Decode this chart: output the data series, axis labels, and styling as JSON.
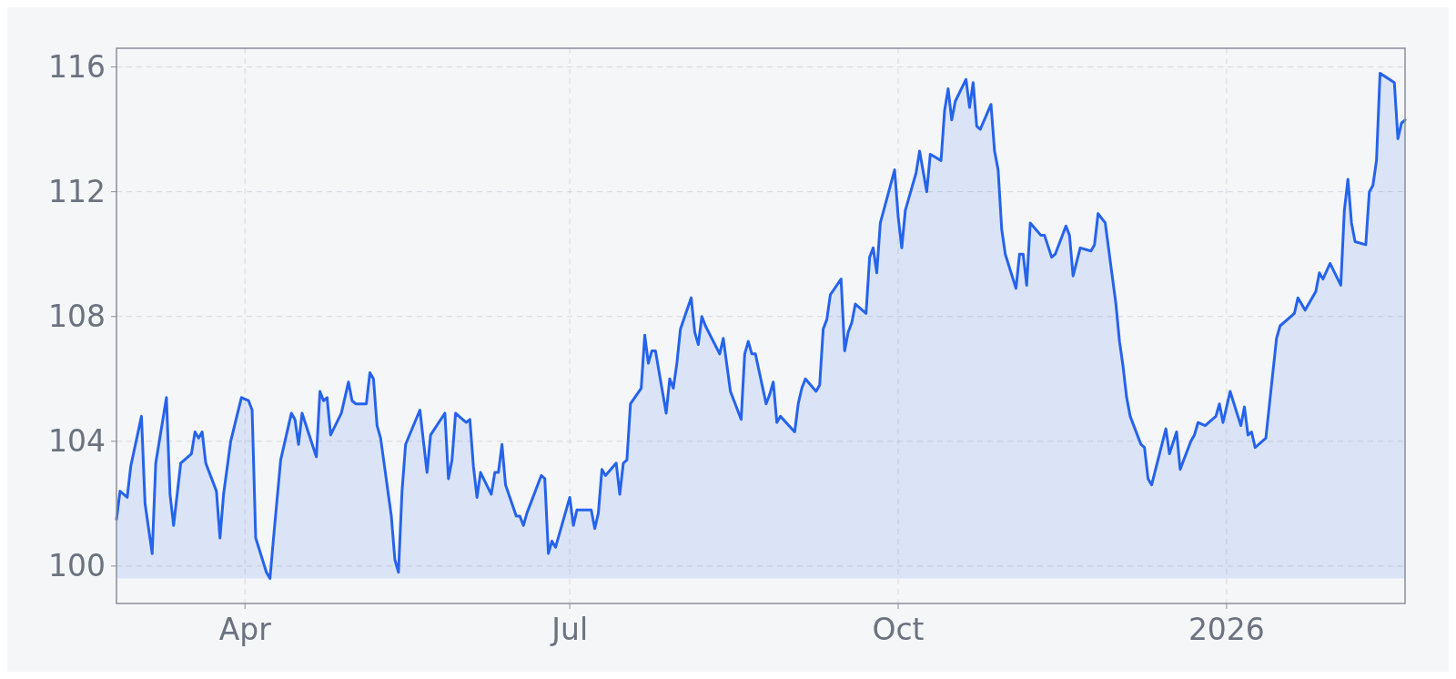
{
  "chart_data": {
    "type": "area",
    "xlim": [
      "2025-02-24",
      "2026-02-20"
    ],
    "xticks": [
      {
        "value": "2025-04-01",
        "label": "Apr"
      },
      {
        "value": "2025-07-01",
        "label": "Jul"
      },
      {
        "value": "2025-10-01",
        "label": "Oct"
      },
      {
        "value": "2026-01-01",
        "label": "2026"
      }
    ],
    "ylim": [
      98.8,
      116.6
    ],
    "yticks": [
      100,
      104,
      108,
      112,
      116
    ],
    "grid": true,
    "x": [
      "2025-02-24",
      "2025-02-25",
      "2025-02-27",
      "2025-02-28",
      "2025-03-03",
      "2025-03-04",
      "2025-03-06",
      "2025-03-07",
      "2025-03-10",
      "2025-03-11",
      "2025-03-12",
      "2025-03-14",
      "2025-03-17",
      "2025-03-18",
      "2025-03-19",
      "2025-03-20",
      "2025-03-21",
      "2025-03-24",
      "2025-03-25",
      "2025-03-26",
      "2025-03-28",
      "2025-03-31",
      "2025-04-02",
      "2025-04-03",
      "2025-04-04",
      "2025-04-07",
      "2025-04-08",
      "2025-04-09",
      "2025-04-11",
      "2025-04-14",
      "2025-04-15",
      "2025-04-16",
      "2025-04-17",
      "2025-04-21",
      "2025-04-22",
      "2025-04-23",
      "2025-04-24",
      "2025-04-25",
      "2025-04-28",
      "2025-04-30",
      "2025-05-01",
      "2025-05-02",
      "2025-05-05",
      "2025-05-06",
      "2025-05-07",
      "2025-05-08",
      "2025-05-09",
      "2025-05-12",
      "2025-05-13",
      "2025-05-14",
      "2025-05-15",
      "2025-05-16",
      "2025-05-20",
      "2025-05-22",
      "2025-05-23",
      "2025-05-27",
      "2025-05-28",
      "2025-05-29",
      "2025-05-30",
      "2025-06-02",
      "2025-06-03",
      "2025-06-04",
      "2025-06-05",
      "2025-06-06",
      "2025-06-09",
      "2025-06-10",
      "2025-06-11",
      "2025-06-12",
      "2025-06-13",
      "2025-06-16",
      "2025-06-17",
      "2025-06-18",
      "2025-06-19",
      "2025-06-23",
      "2025-06-24",
      "2025-06-25",
      "2025-06-26",
      "2025-06-27",
      "2025-06-30",
      "2025-07-01",
      "2025-07-02",
      "2025-07-03",
      "2025-07-07",
      "2025-07-08",
      "2025-07-09",
      "2025-07-10",
      "2025-07-11",
      "2025-07-14",
      "2025-07-15",
      "2025-07-16",
      "2025-07-17",
      "2025-07-18",
      "2025-07-21",
      "2025-07-22",
      "2025-07-23",
      "2025-07-24",
      "2025-07-25",
      "2025-07-28",
      "2025-07-29",
      "2025-07-30",
      "2025-07-31",
      "2025-08-01",
      "2025-08-04",
      "2025-08-05",
      "2025-08-06",
      "2025-08-07",
      "2025-08-08",
      "2025-08-12",
      "2025-08-13",
      "2025-08-15",
      "2025-08-18",
      "2025-08-19",
      "2025-08-20",
      "2025-08-21",
      "2025-08-22",
      "2025-08-25",
      "2025-08-26",
      "2025-08-27",
      "2025-08-28",
      "2025-08-29",
      "2025-09-02",
      "2025-09-03",
      "2025-09-04",
      "2025-09-05",
      "2025-09-08",
      "2025-09-09",
      "2025-09-10",
      "2025-09-11",
      "2025-09-12",
      "2025-09-15",
      "2025-09-16",
      "2025-09-17",
      "2025-09-18",
      "2025-09-19",
      "2025-09-22",
      "2025-09-23",
      "2025-09-24",
      "2025-09-25",
      "2025-09-26",
      "2025-09-30",
      "2025-10-01",
      "2025-10-02",
      "2025-10-03",
      "2025-10-06",
      "2025-10-07",
      "2025-10-09",
      "2025-10-10",
      "2025-10-13",
      "2025-10-14",
      "2025-10-15",
      "2025-10-16",
      "2025-10-17",
      "2025-10-20",
      "2025-10-21",
      "2025-10-22",
      "2025-10-23",
      "2025-10-24",
      "2025-10-27",
      "2025-10-28",
      "2025-10-29",
      "2025-10-30",
      "2025-10-31",
      "2025-11-03",
      "2025-11-04",
      "2025-11-05",
      "2025-11-06",
      "2025-11-07",
      "2025-11-10",
      "2025-11-11",
      "2025-11-13",
      "2025-11-14",
      "2025-11-17",
      "2025-11-18",
      "2025-11-19",
      "2025-11-21",
      "2025-11-24",
      "2025-11-25",
      "2025-11-26",
      "2025-11-28",
      "2025-12-01",
      "2025-12-02",
      "2025-12-03",
      "2025-12-04",
      "2025-12-05",
      "2025-12-08",
      "2025-12-09",
      "2025-12-10",
      "2025-12-11",
      "2025-12-15",
      "2025-12-16",
      "2025-12-18",
      "2025-12-19",
      "2025-12-22",
      "2025-12-23",
      "2025-12-24",
      "2025-12-26",
      "2025-12-29",
      "2025-12-30",
      "2025-12-31",
      "2026-01-02",
      "2026-01-05",
      "2026-01-06",
      "2026-01-07",
      "2026-01-08",
      "2026-01-09",
      "2026-01-12",
      "2026-01-15",
      "2026-01-16",
      "2026-01-20",
      "2026-01-21",
      "2026-01-23",
      "2026-01-26",
      "2026-01-27",
      "2026-01-28",
      "2026-01-30",
      "2026-02-02",
      "2026-02-03",
      "2026-02-04",
      "2026-02-05",
      "2026-02-06",
      "2026-02-09",
      "2026-02-10",
      "2026-02-11",
      "2026-02-12",
      "2026-02-13",
      "2026-02-17",
      "2026-02-18",
      "2026-02-19",
      "2026-02-20"
    ],
    "series": [
      {
        "color": "#2563eb",
        "values": [
          101.5,
          102.4,
          102.2,
          103.2,
          104.8,
          102.0,
          100.4,
          103.3,
          105.4,
          102.3,
          101.3,
          103.3,
          103.6,
          104.3,
          104.1,
          104.3,
          103.3,
          102.4,
          100.9,
          102.3,
          104.0,
          105.4,
          105.3,
          105.0,
          100.9,
          99.8,
          99.6,
          100.9,
          103.4,
          104.9,
          104.7,
          103.9,
          104.9,
          103.5,
          105.6,
          105.3,
          105.4,
          104.2,
          104.9,
          105.9,
          105.3,
          105.2,
          105.2,
          106.2,
          106.0,
          104.5,
          104.1,
          101.6,
          100.2,
          99.8,
          102.4,
          103.9,
          105.0,
          103.0,
          104.2,
          104.9,
          102.8,
          103.4,
          104.9,
          104.6,
          104.7,
          103.2,
          102.2,
          103.0,
          102.3,
          103.0,
          103.0,
          103.9,
          102.6,
          101.6,
          101.6,
          101.3,
          101.7,
          102.9,
          102.8,
          100.4,
          100.8,
          100.6,
          101.8,
          102.2,
          101.3,
          101.8,
          101.8,
          101.2,
          101.7,
          103.1,
          102.9,
          103.3,
          102.3,
          103.3,
          103.4,
          105.2,
          105.7,
          107.4,
          106.5,
          106.9,
          106.9,
          104.9,
          106.0,
          105.7,
          106.5,
          107.6,
          108.6,
          107.5,
          107.1,
          108.0,
          107.7,
          106.8,
          107.3,
          105.6,
          104.7,
          106.8,
          107.2,
          106.8,
          106.8,
          105.2,
          105.5,
          105.9,
          104.6,
          104.8,
          104.3,
          105.2,
          105.7,
          106.0,
          105.6,
          105.8,
          107.6,
          107.9,
          108.7,
          109.2,
          106.9,
          107.5,
          107.8,
          108.4,
          108.1,
          109.9,
          110.2,
          109.4,
          111.0,
          112.7,
          111.2,
          110.2,
          111.4,
          112.6,
          113.3,
          112.0,
          113.2,
          113.0,
          114.6,
          115.3,
          114.3,
          114.9,
          115.6,
          114.7,
          115.5,
          114.1,
          114.0,
          114.8,
          113.3,
          112.7,
          110.8,
          110.0,
          108.9,
          110.0,
          110.0,
          109.0,
          111.0,
          110.6,
          110.6,
          109.9,
          110.0,
          110.9,
          110.6,
          109.3,
          110.2,
          110.1,
          110.3,
          111.3,
          111.0,
          108.4,
          107.2,
          106.4,
          105.4,
          104.8,
          103.9,
          103.8,
          102.8,
          102.6,
          104.4,
          103.6,
          104.3,
          103.1,
          104.0,
          104.2,
          104.6,
          104.5,
          104.8,
          105.2,
          104.6,
          105.6,
          104.5,
          105.1,
          104.2,
          104.3,
          103.8,
          104.1,
          107.3,
          107.7,
          108.1,
          108.6,
          108.2,
          108.8,
          109.4,
          109.2,
          109.7,
          109.0,
          111.4,
          112.4,
          111.0,
          110.4,
          110.3,
          112.0,
          112.2,
          113.0,
          115.8,
          115.5,
          113.7,
          114.2,
          114.3
        ]
      }
    ]
  }
}
